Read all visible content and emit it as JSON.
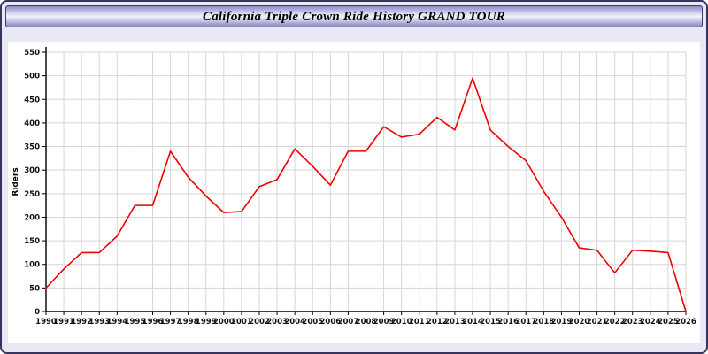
{
  "chart_data": {
    "type": "line",
    "title": "California Triple Crown Ride History GRAND TOUR",
    "xlabel": "",
    "ylabel": "Riders",
    "ylim": [
      0,
      550
    ],
    "ytick_step": 50,
    "grid": "on",
    "legend": "none",
    "line_color": "#ee0000",
    "x": [
      1990,
      1991,
      1992,
      1993,
      1994,
      1995,
      1996,
      1997,
      1998,
      1999,
      2000,
      2001,
      2002,
      2003,
      2004,
      2005,
      2006,
      2007,
      2008,
      2009,
      2010,
      2011,
      2012,
      2013,
      2014,
      2015,
      2016,
      2017,
      2018,
      2019,
      2020,
      2021,
      2022,
      2023,
      2024,
      2025,
      2026
    ],
    "values": [
      50,
      90,
      125,
      125,
      160,
      225,
      225,
      340,
      285,
      245,
      210,
      212,
      265,
      280,
      345,
      308,
      268,
      340,
      340,
      392,
      370,
      376,
      412,
      385,
      495,
      385,
      350,
      320,
      255,
      200,
      135,
      130,
      82,
      130,
      128,
      125,
      0
    ]
  }
}
